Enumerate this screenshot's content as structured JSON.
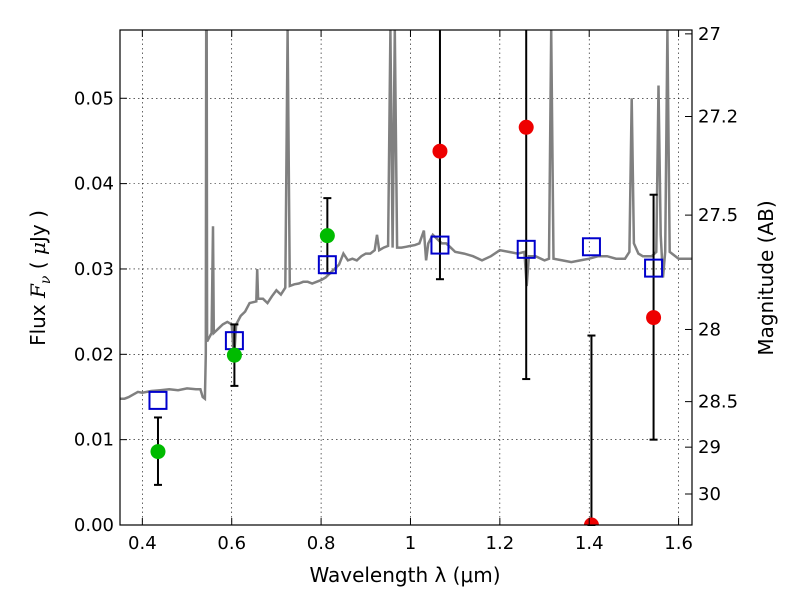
{
  "chart_data": {
    "type": "scatter",
    "title": "",
    "xlabel": "Wavelength  λ (μm)",
    "ylabel": "Flux  F_ν  ( μJy )",
    "ylabel_right": "Magnitude (AB)",
    "xlim": [
      0.35,
      1.63
    ],
    "ylim": [
      0.0,
      0.058
    ],
    "grid": true,
    "x_ticks": [
      {
        "value": 0.4,
        "label": "0.4"
      },
      {
        "value": 0.6,
        "label": "0.6"
      },
      {
        "value": 0.8,
        "label": "0.8"
      },
      {
        "value": 1.0,
        "label": "1"
      },
      {
        "value": 1.2,
        "label": "1.2"
      },
      {
        "value": 1.4,
        "label": "1.4"
      },
      {
        "value": 1.6,
        "label": "1.6"
      }
    ],
    "y_ticks": [
      {
        "value": 0.0,
        "label": "0.00"
      },
      {
        "value": 0.01,
        "label": "0.01"
      },
      {
        "value": 0.02,
        "label": "0.02"
      },
      {
        "value": 0.03,
        "label": "0.03"
      },
      {
        "value": 0.04,
        "label": "0.04"
      },
      {
        "value": 0.05,
        "label": "0.05"
      }
    ],
    "y2_ticks": [
      {
        "mag": 27,
        "label": "27"
      },
      {
        "mag": 27.2,
        "label": "27.2"
      },
      {
        "mag": 27.5,
        "label": "27.5"
      },
      {
        "mag": 28,
        "label": "28"
      },
      {
        "mag": 28.5,
        "label": "28.5"
      },
      {
        "mag": 29,
        "label": "29"
      },
      {
        "mag": 30,
        "label": "30"
      }
    ],
    "template_spectrum": {
      "color": "#808080",
      "points": [
        [
          0.35,
          0.0148
        ],
        [
          0.36,
          0.0148
        ],
        [
          0.37,
          0.015
        ],
        [
          0.38,
          0.0153
        ],
        [
          0.39,
          0.0156
        ],
        [
          0.4,
          0.0155
        ],
        [
          0.42,
          0.0157
        ],
        [
          0.44,
          0.0158
        ],
        [
          0.46,
          0.0159
        ],
        [
          0.48,
          0.0158
        ],
        [
          0.5,
          0.016
        ],
        [
          0.52,
          0.0159
        ],
        [
          0.53,
          0.0159
        ],
        [
          0.535,
          0.015
        ],
        [
          0.54,
          0.0148
        ],
        [
          0.542,
          0.02
        ],
        [
          0.543,
          0.058
        ],
        [
          0.544,
          0.058
        ],
        [
          0.545,
          0.0215
        ],
        [
          0.55,
          0.022
        ],
        [
          0.555,
          0.0225
        ],
        [
          0.558,
          0.035
        ],
        [
          0.56,
          0.0225
        ],
        [
          0.57,
          0.023
        ],
        [
          0.58,
          0.0235
        ],
        [
          0.59,
          0.0238
        ],
        [
          0.6,
          0.0235
        ],
        [
          0.605,
          0.0195
        ],
        [
          0.61,
          0.0235
        ],
        [
          0.62,
          0.0245
        ],
        [
          0.63,
          0.025
        ],
        [
          0.64,
          0.026
        ],
        [
          0.655,
          0.0262
        ],
        [
          0.657,
          0.03
        ],
        [
          0.659,
          0.0265
        ],
        [
          0.67,
          0.0265
        ],
        [
          0.68,
          0.026
        ],
        [
          0.69,
          0.0268
        ],
        [
          0.7,
          0.0275
        ],
        [
          0.71,
          0.027
        ],
        [
          0.72,
          0.0278
        ],
        [
          0.725,
          0.058
        ],
        [
          0.73,
          0.028
        ],
        [
          0.74,
          0.0282
        ],
        [
          0.75,
          0.0283
        ],
        [
          0.76,
          0.0285
        ],
        [
          0.77,
          0.0285
        ],
        [
          0.78,
          0.0283
        ],
        [
          0.79,
          0.0285
        ],
        [
          0.8,
          0.0287
        ],
        [
          0.81,
          0.029
        ],
        [
          0.82,
          0.0295
        ],
        [
          0.83,
          0.03
        ],
        [
          0.84,
          0.0305
        ],
        [
          0.85,
          0.0318
        ],
        [
          0.86,
          0.031
        ],
        [
          0.87,
          0.0312
        ],
        [
          0.88,
          0.031
        ],
        [
          0.89,
          0.0315
        ],
        [
          0.9,
          0.0318
        ],
        [
          0.91,
          0.0318
        ],
        [
          0.92,
          0.0322
        ],
        [
          0.925,
          0.034
        ],
        [
          0.93,
          0.0322
        ],
        [
          0.94,
          0.0325
        ],
        [
          0.95,
          0.0327
        ],
        [
          0.955,
          0.058
        ],
        [
          0.96,
          0.0325
        ],
        [
          0.965,
          0.058
        ],
        [
          0.97,
          0.0325
        ],
        [
          0.98,
          0.0325
        ],
        [
          0.99,
          0.0326
        ],
        [
          1.0,
          0.0327
        ],
        [
          1.01,
          0.0328
        ],
        [
          1.02,
          0.033
        ],
        [
          1.03,
          0.0345
        ],
        [
          1.035,
          0.031
        ],
        [
          1.04,
          0.033
        ],
        [
          1.05,
          0.034
        ],
        [
          1.06,
          0.0335
        ],
        [
          1.07,
          0.033
        ],
        [
          1.08,
          0.033
        ],
        [
          1.09,
          0.0325
        ],
        [
          1.1,
          0.032
        ],
        [
          1.12,
          0.0318
        ],
        [
          1.14,
          0.0315
        ],
        [
          1.16,
          0.031
        ],
        [
          1.18,
          0.0315
        ],
        [
          1.2,
          0.0322
        ],
        [
          1.22,
          0.032
        ],
        [
          1.24,
          0.0318
        ],
        [
          1.255,
          0.032
        ],
        [
          1.26,
          0.028
        ],
        [
          1.265,
          0.0315
        ],
        [
          1.28,
          0.0315
        ],
        [
          1.3,
          0.031
        ],
        [
          1.31,
          0.0312
        ],
        [
          1.315,
          0.058
        ],
        [
          1.32,
          0.0312
        ],
        [
          1.34,
          0.031
        ],
        [
          1.36,
          0.0308
        ],
        [
          1.38,
          0.031
        ],
        [
          1.4,
          0.0312
        ],
        [
          1.42,
          0.0315
        ],
        [
          1.44,
          0.0315
        ],
        [
          1.46,
          0.0312
        ],
        [
          1.48,
          0.0312
        ],
        [
          1.49,
          0.032
        ],
        [
          1.495,
          0.05
        ],
        [
          1.5,
          0.033
        ],
        [
          1.51,
          0.0318
        ],
        [
          1.52,
          0.0315
        ],
        [
          1.54,
          0.0315
        ],
        [
          1.55,
          0.032
        ],
        [
          1.555,
          0.0515
        ],
        [
          1.56,
          0.034
        ],
        [
          1.565,
          0.029
        ],
        [
          1.57,
          0.032
        ],
        [
          1.575,
          0.058
        ],
        [
          1.58,
          0.032
        ],
        [
          1.6,
          0.0312
        ],
        [
          1.63,
          0.0312
        ]
      ]
    },
    "series": [
      {
        "marker": "open-square",
        "color": "#0000cc",
        "points": [
          {
            "x": 0.435,
            "y": 0.0146
          },
          {
            "x": 0.606,
            "y": 0.0216
          },
          {
            "x": 0.814,
            "y": 0.0305
          },
          {
            "x": 1.066,
            "y": 0.0328
          },
          {
            "x": 1.259,
            "y": 0.0323
          },
          {
            "x": 1.405,
            "y": 0.0326
          },
          {
            "x": 1.544,
            "y": 0.0301
          }
        ]
      },
      {
        "marker": "filled-circle",
        "color": "#00bb00",
        "points": [
          {
            "x": 0.435,
            "y": 0.0086,
            "yerr": [
              0.0039,
              0.004
            ]
          },
          {
            "x": 0.606,
            "y": 0.0199,
            "yerr": [
              0.0036,
              0.0036
            ]
          },
          {
            "x": 0.814,
            "y": 0.0339,
            "yerr": [
              0.0044,
              0.0044
            ]
          }
        ]
      },
      {
        "marker": "filled-circle",
        "color": "#ee0000",
        "points": [
          {
            "x": 1.066,
            "y": 0.0438,
            "yerr": [
              0.015,
              0.02
            ]
          },
          {
            "x": 1.259,
            "y": 0.0466,
            "yerr": [
              0.0295,
              0.02
            ]
          },
          {
            "x": 1.405,
            "y": 0.0,
            "yerr": [
              0.0,
              0.0222
            ]
          },
          {
            "x": 1.544,
            "y": 0.0243,
            "yerr": [
              0.0143,
              0.0144
            ]
          }
        ]
      }
    ]
  }
}
